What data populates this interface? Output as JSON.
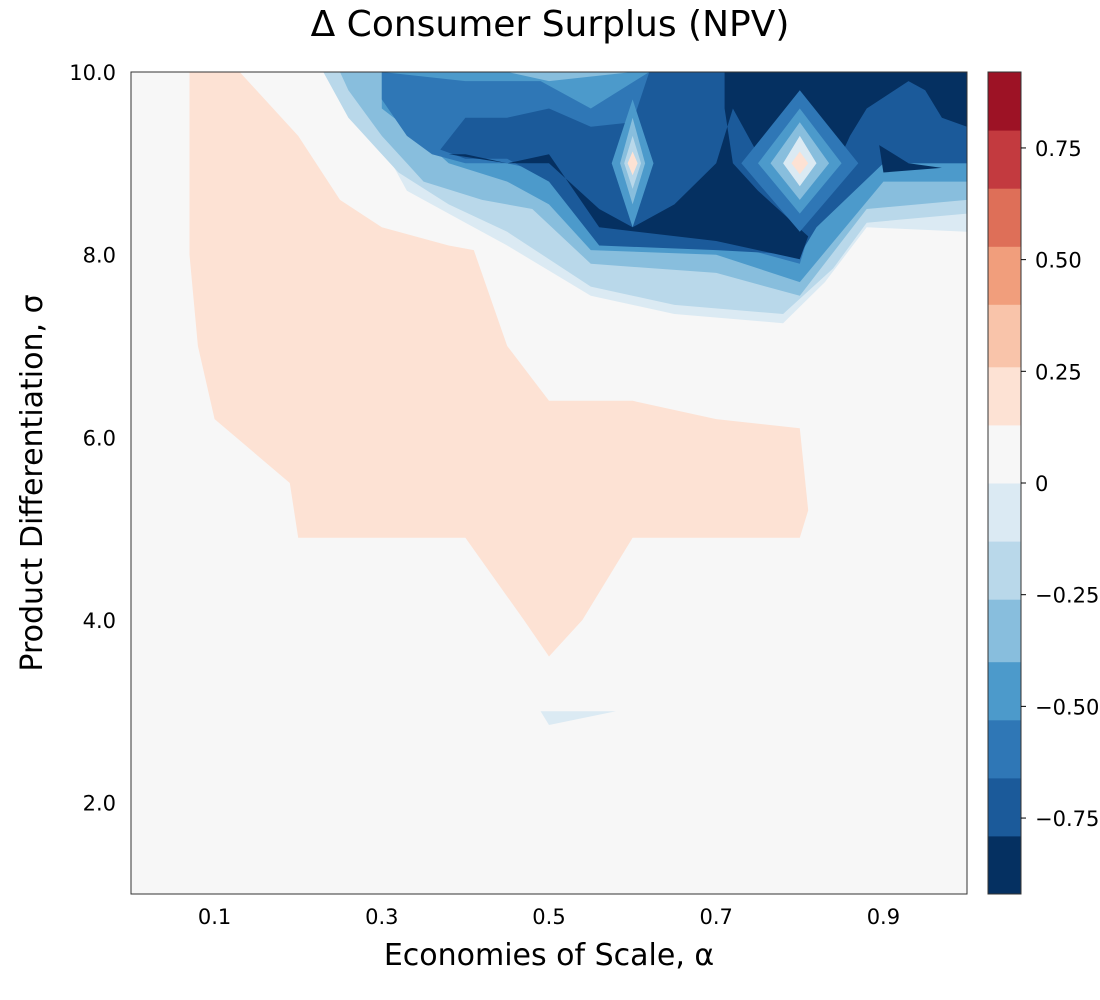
{
  "chart_data": {
    "type": "contour",
    "title": "Δ Consumer Surplus (NPV)",
    "xlabel": "Economies of Scale, α",
    "ylabel": "Product Differentiation, σ",
    "xlim": [
      0.0,
      1.0
    ],
    "ylim": [
      1.0,
      10.0
    ],
    "x_ticks": [
      {
        "value": 0.1,
        "label": "0.1"
      },
      {
        "value": 0.3,
        "label": "0.3"
      },
      {
        "value": 0.5,
        "label": "0.5"
      },
      {
        "value": 0.7,
        "label": "0.7"
      },
      {
        "value": 0.9,
        "label": "0.9"
      }
    ],
    "y_ticks": [
      {
        "value": 2.0,
        "label": "2.0"
      },
      {
        "value": 4.0,
        "label": "4.0"
      },
      {
        "value": 6.0,
        "label": "6.0"
      },
      {
        "value": 8.0,
        "label": "8.0"
      },
      {
        "value": 10.0,
        "label": "10.0"
      }
    ],
    "colorbar": {
      "levels": [
        -0.92,
        -0.79,
        -0.66,
        -0.53,
        -0.4,
        -0.26,
        -0.13,
        0.0,
        0.13,
        0.26,
        0.4,
        0.53,
        0.66,
        0.79,
        0.92
      ],
      "colors": [
        "#053061",
        "#1b5a9a",
        "#2f77b6",
        "#4c9acb",
        "#88bedd",
        "#b9d8ea",
        "#dbeaf3",
        "#f7f7f7",
        "#fde2d4",
        "#f9c4aa",
        "#f19e7c",
        "#de6f58",
        "#c33a3f",
        "#9d1225",
        "#67001f"
      ],
      "ticks": [
        {
          "value": -0.75,
          "label": "−0.75"
        },
        {
          "value": -0.5,
          "label": "−0.50"
        },
        {
          "value": -0.25,
          "label": "−0.25"
        },
        {
          "value": 0.0,
          "label": "0"
        },
        {
          "value": 0.25,
          "label": "0.25"
        },
        {
          "value": 0.5,
          "label": "0.50"
        },
        {
          "value": 0.75,
          "label": "0.75"
        }
      ]
    },
    "background_level": 0.0,
    "regions": [
      {
        "value": 0.1,
        "points": [
          [
            0.02,
            10
          ],
          [
            0.12,
            10
          ],
          [
            0.155,
            10
          ],
          [
            0.17,
            10
          ],
          [
            0.23,
            10
          ],
          [
            0.25,
            9.6
          ],
          [
            0.3,
            8.9
          ],
          [
            0.33,
            8.5
          ],
          [
            0.38,
            8.25
          ],
          [
            0.42,
            8.05
          ],
          [
            0.55,
            7.4
          ],
          [
            0.67,
            7.2
          ],
          [
            0.78,
            7.1
          ],
          [
            0.82,
            7.0
          ],
          [
            0.86,
            6.5
          ],
          [
            0.86,
            5.0
          ],
          [
            0.84,
            4.8
          ],
          [
            0.8,
            4.5
          ],
          [
            0.63,
            4.5
          ],
          [
            0.57,
            3.8
          ],
          [
            0.5,
            3.35
          ],
          [
            0.46,
            3.8
          ],
          [
            0.41,
            4.35
          ],
          [
            0.28,
            4.4
          ],
          [
            0.2,
            4.35
          ],
          [
            0.1,
            5.5
          ],
          [
            0.035,
            6.0
          ],
          [
            0.025,
            8.0
          ]
        ]
      },
      {
        "value": 0.1,
        "points": [
          [
            0.88,
            8.1
          ],
          [
            0.92,
            8.0
          ],
          [
            0.96,
            7.95
          ],
          [
            0.9,
            7.4
          ],
          [
            0.88,
            7.7
          ]
        ]
      },
      {
        "value": -0.13,
        "points": [
          [
            0.49,
            3.0
          ],
          [
            0.58,
            3.0
          ],
          [
            0.5,
            2.85
          ]
        ]
      },
      {
        "value": 0.22,
        "points": [
          [
            0.07,
            10
          ],
          [
            0.11,
            10
          ],
          [
            0.13,
            10
          ],
          [
            0.2,
            9.3
          ],
          [
            0.25,
            8.6
          ],
          [
            0.3,
            8.3
          ],
          [
            0.38,
            8.1
          ],
          [
            0.41,
            8.05
          ],
          [
            0.45,
            7.0
          ],
          [
            0.5,
            6.4
          ],
          [
            0.6,
            6.4
          ],
          [
            0.7,
            6.2
          ],
          [
            0.8,
            6.1
          ],
          [
            0.81,
            5.2
          ],
          [
            0.8,
            4.9
          ],
          [
            0.6,
            4.9
          ],
          [
            0.54,
            4.0
          ],
          [
            0.5,
            3.6
          ],
          [
            0.47,
            4.0
          ],
          [
            0.4,
            4.9
          ],
          [
            0.2,
            4.9
          ],
          [
            0.19,
            5.5
          ],
          [
            0.1,
            6.2
          ],
          [
            0.08,
            7.0
          ],
          [
            0.07,
            8.0
          ]
        ]
      },
      {
        "value": 0.22,
        "points": [
          [
            0.595,
            9.0
          ],
          [
            0.605,
            9.1
          ],
          [
            0.615,
            9.0
          ],
          [
            0.605,
            8.9
          ]
        ]
      },
      {
        "value": -0.1,
        "points": [
          [
            0.14,
            10
          ],
          [
            0.24,
            10
          ],
          [
            0.26,
            9.8
          ],
          [
            0.3,
            9.2
          ],
          [
            0.33,
            8.7
          ],
          [
            0.4,
            8.35
          ],
          [
            0.45,
            8.1
          ],
          [
            0.55,
            7.55
          ],
          [
            0.65,
            7.35
          ],
          [
            0.78,
            7.25
          ],
          [
            0.83,
            7.7
          ],
          [
            0.88,
            8.3
          ],
          [
            1.0,
            8.25
          ],
          [
            1.0,
            10.0
          ]
        ]
      },
      {
        "value": -0.2,
        "points": [
          [
            0.17,
            10
          ],
          [
            0.23,
            10
          ],
          [
            0.26,
            9.5
          ],
          [
            0.32,
            8.9
          ],
          [
            0.38,
            8.55
          ],
          [
            0.45,
            8.25
          ],
          [
            0.55,
            7.65
          ],
          [
            0.65,
            7.45
          ],
          [
            0.78,
            7.35
          ],
          [
            0.84,
            7.85
          ],
          [
            0.88,
            8.35
          ],
          [
            1.0,
            8.45
          ],
          [
            1.0,
            10.0
          ]
        ]
      },
      {
        "value": -0.33,
        "points": [
          [
            0.25,
            10
          ],
          [
            0.26,
            9.8
          ],
          [
            0.3,
            9.3
          ],
          [
            0.33,
            9.0
          ],
          [
            0.35,
            8.8
          ],
          [
            0.42,
            8.6
          ],
          [
            0.48,
            8.5
          ],
          [
            0.55,
            7.9
          ],
          [
            0.7,
            7.8
          ],
          [
            0.8,
            7.55
          ],
          [
            0.88,
            8.5
          ],
          [
            1.0,
            8.6
          ],
          [
            1.0,
            10.0
          ]
        ]
      },
      {
        "value": -0.45,
        "points": [
          [
            0.3,
            10
          ],
          [
            0.3,
            9.6
          ],
          [
            0.35,
            9.25
          ],
          [
            0.38,
            9.0
          ],
          [
            0.45,
            8.8
          ],
          [
            0.5,
            8.55
          ],
          [
            0.55,
            8.05
          ],
          [
            0.7,
            8.0
          ],
          [
            0.8,
            7.7
          ],
          [
            0.9,
            8.8
          ],
          [
            1.0,
            8.8
          ],
          [
            1.0,
            10.0
          ],
          [
            0.6,
            10.0
          ],
          [
            0.5,
            9.9
          ],
          [
            0.45,
            10.0
          ]
        ]
      },
      {
        "value": -0.58,
        "points": [
          [
            0.3,
            10
          ],
          [
            0.3,
            9.7
          ],
          [
            0.33,
            9.3
          ],
          [
            0.36,
            9.1
          ],
          [
            0.4,
            9.0
          ],
          [
            0.45,
            9.0
          ],
          [
            0.5,
            8.9
          ],
          [
            0.55,
            8.3
          ],
          [
            0.7,
            8.15
          ],
          [
            0.8,
            7.9
          ],
          [
            0.82,
            8.5
          ],
          [
            0.9,
            9.0
          ],
          [
            1.0,
            9.0
          ],
          [
            1.0,
            10.0
          ],
          [
            0.62,
            10.0
          ],
          [
            0.55,
            9.6
          ],
          [
            0.49,
            9.9
          ],
          [
            0.4,
            9.9
          ]
        ]
      },
      {
        "value": -0.7,
        "points": [
          [
            0.37,
            9.15
          ],
          [
            0.4,
            9.5
          ],
          [
            0.45,
            9.5
          ],
          [
            0.5,
            9.6
          ],
          [
            0.55,
            9.4
          ],
          [
            0.6,
            9.45
          ],
          [
            0.62,
            10.0
          ],
          [
            0.68,
            10.0
          ],
          [
            0.71,
            10.0
          ],
          [
            1.0,
            10.0
          ],
          [
            1.0,
            9.0
          ],
          [
            0.9,
            9.0
          ],
          [
            0.82,
            8.3
          ],
          [
            0.8,
            8.0
          ],
          [
            0.7,
            8.05
          ],
          [
            0.56,
            8.1
          ],
          [
            0.5,
            8.8
          ],
          [
            0.45,
            9.05
          ],
          [
            0.4,
            9.05
          ]
        ]
      },
      {
        "value": -0.83,
        "points": [
          [
            0.38,
            9.1
          ],
          [
            0.45,
            9.0
          ],
          [
            0.5,
            9.1
          ],
          [
            0.53,
            8.7
          ],
          [
            0.56,
            8.3
          ],
          [
            0.7,
            8.15
          ],
          [
            0.8,
            7.95
          ],
          [
            0.81,
            8.2
          ],
          [
            0.75,
            8.7
          ],
          [
            0.72,
            9.0
          ],
          [
            0.71,
            9.6
          ],
          [
            0.71,
            10.0
          ],
          [
            1.0,
            10.0
          ],
          [
            1.0,
            9.4
          ],
          [
            0.97,
            9.5
          ],
          [
            0.95,
            9.8
          ],
          [
            0.93,
            9.9
          ],
          [
            0.88,
            9.6
          ],
          [
            0.86,
            9.3
          ],
          [
            0.84,
            8.9
          ],
          [
            0.8,
            8.7
          ],
          [
            0.75,
            9.1
          ],
          [
            0.72,
            9.6
          ],
          [
            0.7,
            9.0
          ],
          [
            0.65,
            8.55
          ],
          [
            0.6,
            8.3
          ],
          [
            0.56,
            8.5
          ],
          [
            0.5,
            9.0
          ],
          [
            0.45,
            9.0
          ],
          [
            0.4,
            9.1
          ]
        ]
      },
      {
        "value": -0.46,
        "points": [
          [
            0.575,
            9.0
          ],
          [
            0.6,
            9.7
          ],
          [
            0.625,
            9.0
          ],
          [
            0.6,
            8.3
          ]
        ]
      },
      {
        "value": -0.3,
        "points": [
          [
            0.585,
            9.0
          ],
          [
            0.6,
            9.5
          ],
          [
            0.615,
            9.0
          ],
          [
            0.6,
            8.55
          ]
        ]
      },
      {
        "value": -0.15,
        "points": [
          [
            0.59,
            9.0
          ],
          [
            0.6,
            9.3
          ],
          [
            0.61,
            9.0
          ],
          [
            0.6,
            8.72
          ]
        ]
      },
      {
        "value": 0.18,
        "points": [
          [
            0.594,
            9.0
          ],
          [
            0.6,
            9.13
          ],
          [
            0.606,
            9.0
          ],
          [
            0.6,
            8.87
          ]
        ]
      },
      {
        "value": -0.6,
        "points": [
          [
            0.73,
            9.0
          ],
          [
            0.8,
            9.8
          ],
          [
            0.87,
            9.0
          ],
          [
            0.8,
            8.25
          ]
        ]
      },
      {
        "value": -0.44,
        "points": [
          [
            0.75,
            9.0
          ],
          [
            0.8,
            9.6
          ],
          [
            0.85,
            9.0
          ],
          [
            0.8,
            8.45
          ]
        ]
      },
      {
        "value": -0.28,
        "points": [
          [
            0.765,
            9.0
          ],
          [
            0.8,
            9.45
          ],
          [
            0.835,
            9.0
          ],
          [
            0.8,
            8.6
          ]
        ]
      },
      {
        "value": -0.12,
        "points": [
          [
            0.78,
            9.0
          ],
          [
            0.8,
            9.3
          ],
          [
            0.82,
            9.0
          ],
          [
            0.8,
            8.75
          ]
        ]
      },
      {
        "value": 0.18,
        "points": [
          [
            0.79,
            9.0
          ],
          [
            0.8,
            9.13
          ],
          [
            0.81,
            9.0
          ],
          [
            0.8,
            8.88
          ]
        ]
      },
      {
        "value": -0.95,
        "points": [
          [
            0.895,
            9.2
          ],
          [
            0.93,
            9.0
          ],
          [
            0.97,
            8.95
          ],
          [
            0.9,
            8.9
          ]
        ]
      }
    ]
  }
}
